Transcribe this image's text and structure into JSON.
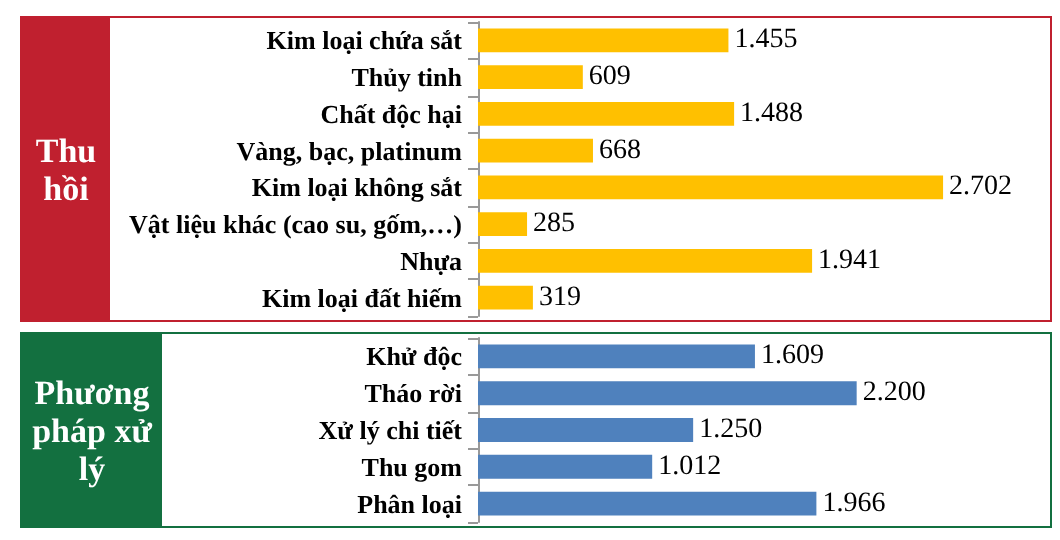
{
  "chart_data": [
    {
      "type": "bar",
      "title": "Thu hồi",
      "orientation": "horizontal",
      "categories": [
        "Kim loại chứa sắt",
        "Thủy tinh",
        "Chất độc hại",
        "Vàng, bạc, platinum",
        "Kim loại không sắt",
        "Vật liệu khác (cao su, gốm,…)",
        "Nhựa",
        "Kim loại đất hiếm"
      ],
      "values": [
        1455,
        609,
        1488,
        668,
        2702,
        285,
        1941,
        319
      ],
      "value_labels": [
        "1.455",
        "609",
        "1.488",
        "668",
        "2.702",
        "285",
        "1.941",
        "319"
      ],
      "color": "#ffc000",
      "xlim": [
        0,
        3300
      ],
      "tick_labels": "y"
    },
    {
      "type": "bar",
      "title": "Phương pháp xử lý",
      "orientation": "horizontal",
      "categories": [
        "Khử độc",
        "Tháo rời",
        "Xử lý chi tiết",
        "Thu gom",
        "Phân loại"
      ],
      "values": [
        1609,
        2200,
        1250,
        1012,
        1966
      ],
      "value_labels": [
        "1.609",
        "2.200",
        "1.250",
        "1.012",
        "1.966"
      ],
      "color": "#4f81bd",
      "xlim": [
        0,
        3300
      ],
      "tick_labels": "y"
    }
  ]
}
